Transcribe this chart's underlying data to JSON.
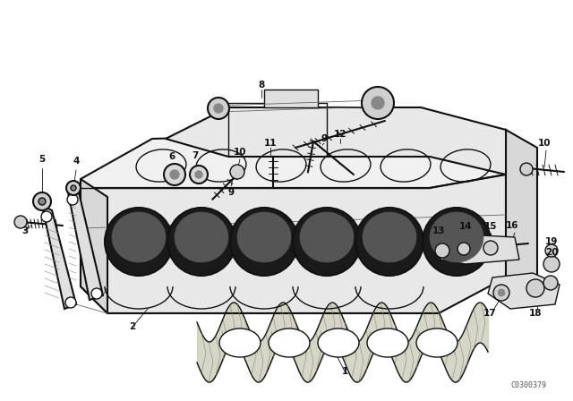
{
  "bg": "#ffffff",
  "lc": "#111111",
  "watermark": "C0300379",
  "figsize": [
    6.4,
    4.48
  ],
  "dpi": 100
}
